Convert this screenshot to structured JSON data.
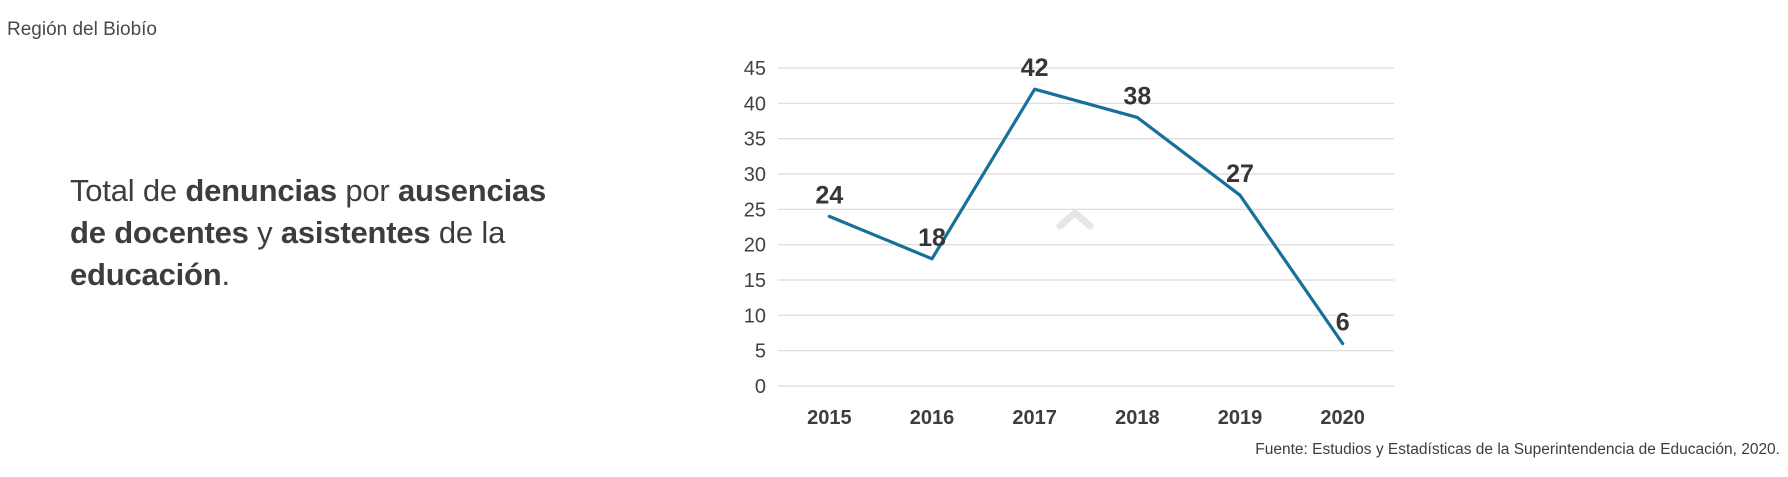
{
  "header": {
    "region_label": "Región del Biobío"
  },
  "statement": {
    "lines": [
      [
        {
          "text": "Total de ",
          "bold": false
        },
        {
          "text": "denuncias",
          "bold": true
        },
        {
          "text": " por ",
          "bold": false
        },
        {
          "text": "ausencias",
          "bold": true
        }
      ],
      [
        {
          "text": "de docentes",
          "bold": true
        },
        {
          "text": " y ",
          "bold": false
        },
        {
          "text": "asistentes",
          "bold": true
        },
        {
          "text": " de la",
          "bold": false
        }
      ],
      [
        {
          "text": "educación",
          "bold": true
        },
        {
          "text": ".",
          "bold": false
        }
      ]
    ]
  },
  "chart_data": {
    "type": "line",
    "categories": [
      "2015",
      "2016",
      "2017",
      "2018",
      "2019",
      "2020"
    ],
    "series": [
      {
        "name": "Total de denuncias",
        "values": [
          24,
          18,
          42,
          38,
          27,
          6
        ]
      }
    ],
    "data_labels": [
      24,
      18,
      42,
      38,
      27,
      6
    ],
    "title": "",
    "xlabel": "",
    "ylabel": "",
    "ylim": [
      0,
      45
    ],
    "yticks": [
      0,
      5,
      10,
      15,
      20,
      25,
      30,
      35,
      40,
      45
    ],
    "grid": true,
    "legend": "none",
    "line_color": "#17709a",
    "gridline_color": "#d9d9d9",
    "axis_label_color": "#424242",
    "x_label_color": "#3d3d3d",
    "data_label_color": "#363636"
  },
  "watermark": {
    "icon": "chevron-up-icon",
    "color": "#e6e6e6"
  },
  "footer": {
    "source": "Fuente: Estudios y Estadísticas de la Superintendencia de Educación, 2020."
  }
}
